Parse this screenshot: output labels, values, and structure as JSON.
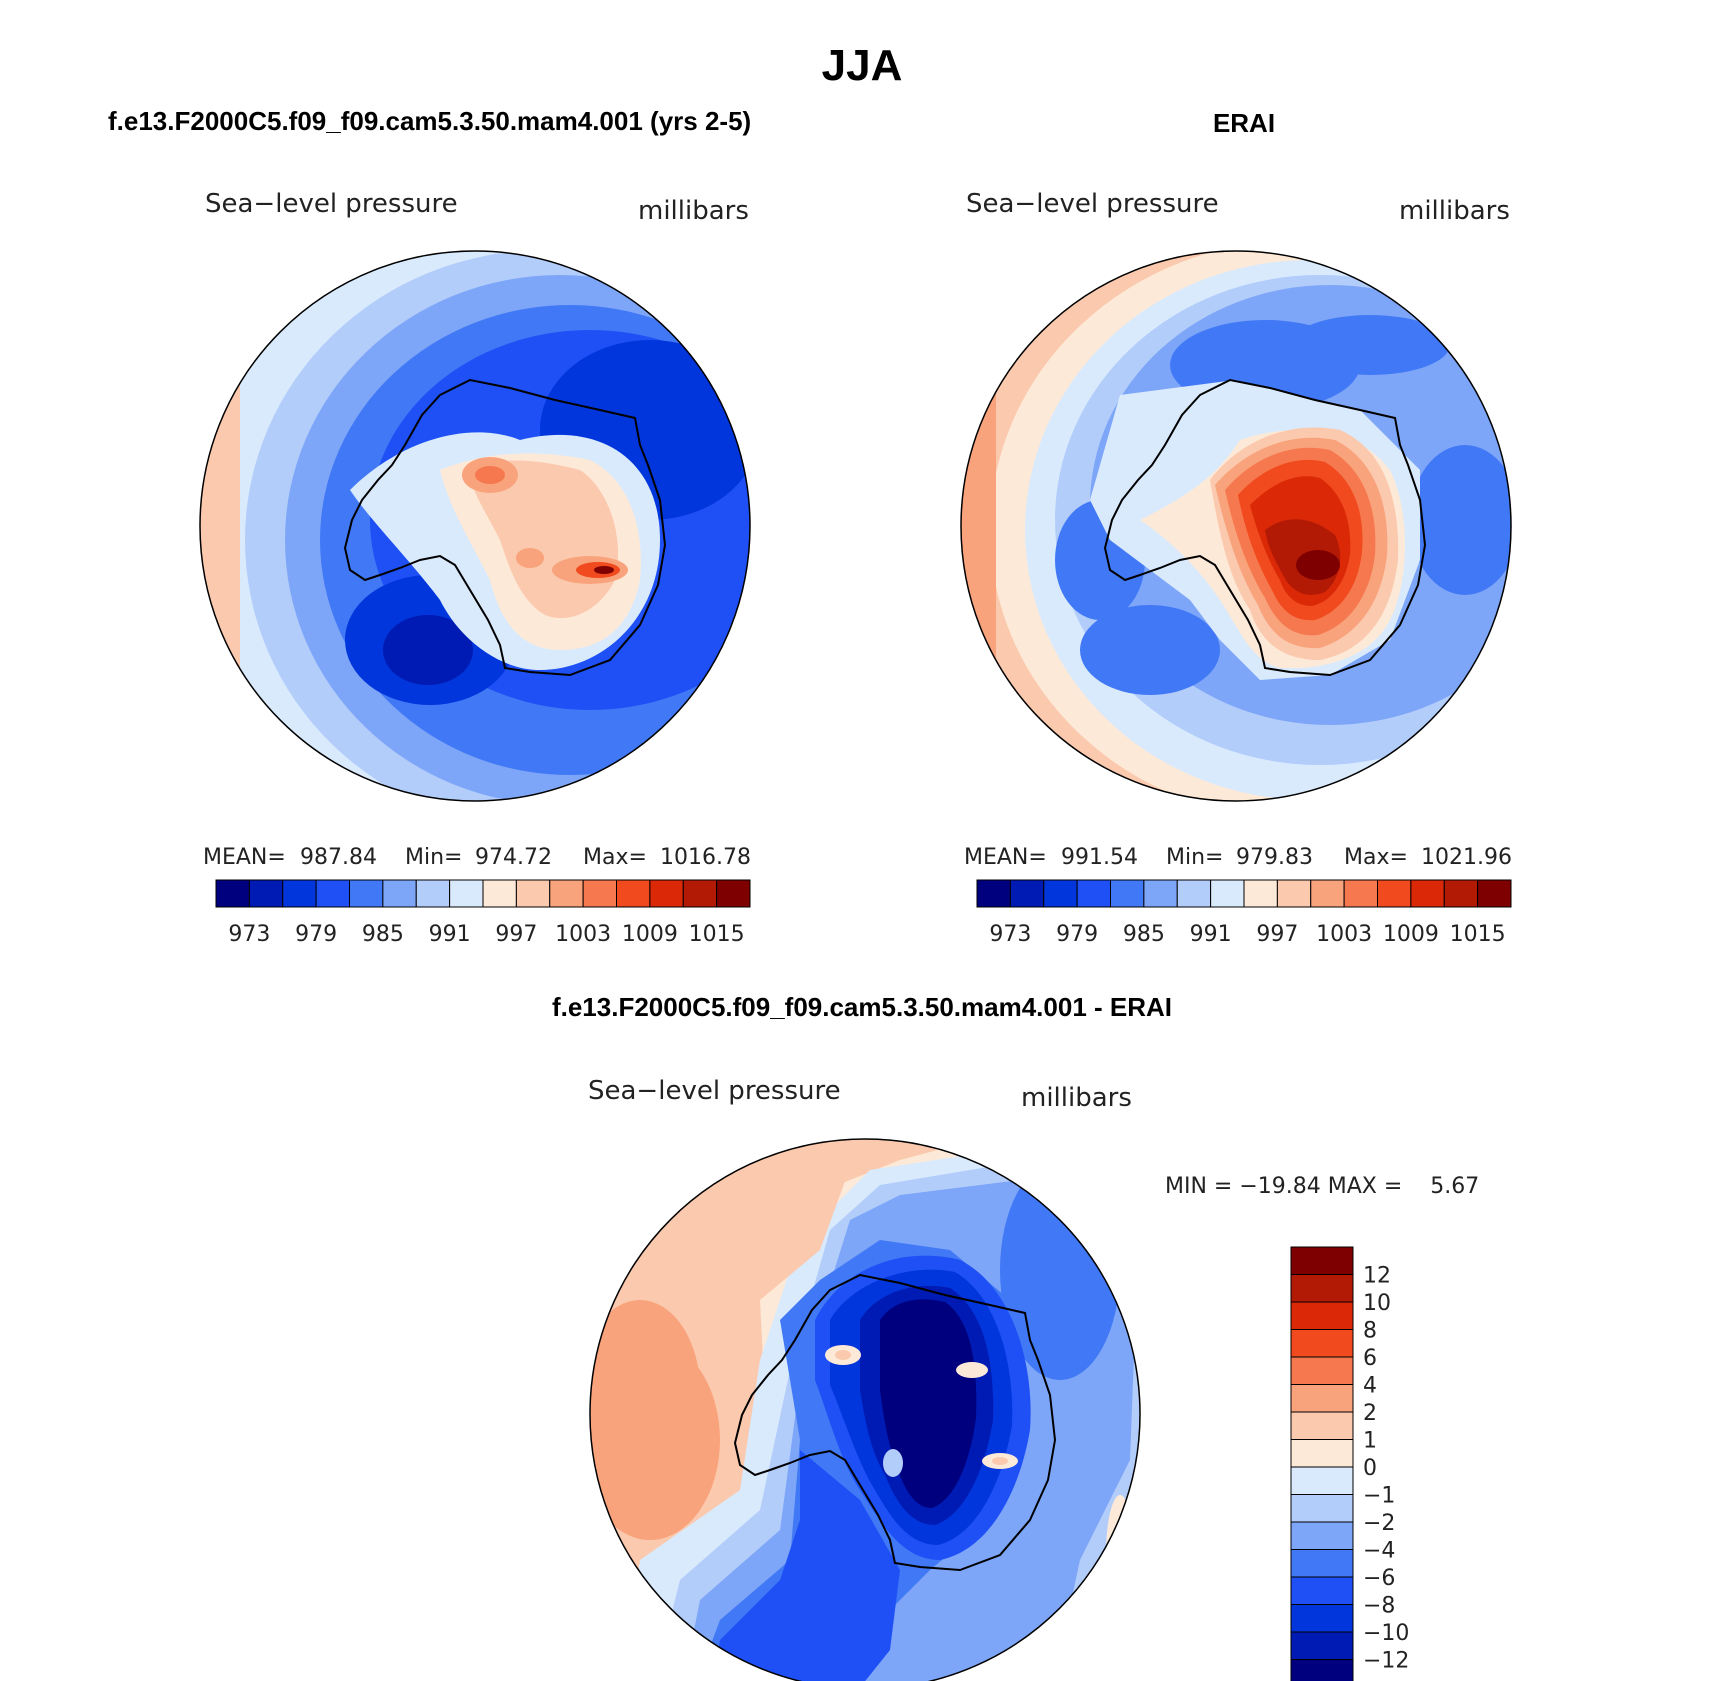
{
  "page_title": "JJA",
  "chart_data": [
    {
      "type": "heatmap",
      "projection": "south-polar-stereographic",
      "title": "f.e13.F2000C5.f09_f09.cam5.3.50.mam4.001 (yrs 2-5)",
      "left_label": "Sea−level pressure",
      "right_label": "millibars",
      "stats": {
        "mean_label": "MEAN=",
        "mean": "987.84",
        "min_label": "Min=",
        "min": "974.72",
        "max_label": "Max=",
        "max": "1016.78"
      },
      "colorbar_orientation": "horizontal",
      "colorbar_ticks": [
        "973",
        "979",
        "985",
        "991",
        "997",
        "1003",
        "1009",
        "1015"
      ],
      "colors": [
        "#00007f",
        "#001bb3",
        "#0036dc",
        "#1e50f5",
        "#4178f5",
        "#7ea6f8",
        "#b3cdfb",
        "#d9eafd",
        "#fde9d7",
        "#fbc9ae",
        "#f9a37c",
        "#f5784f",
        "#f04a1e",
        "#db2908",
        "#b31a06",
        "#7f0000"
      ]
    },
    {
      "type": "heatmap",
      "projection": "south-polar-stereographic",
      "title": "ERAI",
      "left_label": "Sea−level pressure",
      "right_label": "millibars",
      "stats": {
        "mean_label": "MEAN=",
        "mean": "991.54",
        "min_label": "Min=",
        "min": "979.83",
        "max_label": "Max=",
        "max": "1021.96"
      },
      "colorbar_orientation": "horizontal",
      "colorbar_ticks": [
        "973",
        "979",
        "985",
        "991",
        "997",
        "1003",
        "1009",
        "1015"
      ],
      "colors": [
        "#00007f",
        "#001bb3",
        "#0036dc",
        "#1e50f5",
        "#4178f5",
        "#7ea6f8",
        "#b3cdfb",
        "#d9eafd",
        "#fde9d7",
        "#fbc9ae",
        "#f9a37c",
        "#f5784f",
        "#f04a1e",
        "#db2908",
        "#b31a06",
        "#7f0000"
      ]
    },
    {
      "type": "heatmap",
      "projection": "south-polar-stereographic",
      "title": "f.e13.F2000C5.f09_f09.cam5.3.50.mam4.001 - ERAI",
      "left_label": "Sea−level pressure",
      "right_label": "millibars",
      "range_text": "MIN = −19.84 MAX =    5.67",
      "colorbar_orientation": "vertical",
      "colorbar_ticks": [
        "12",
        "10",
        "8",
        "6",
        "4",
        "2",
        "1",
        "0",
        "−1",
        "−2",
        "−4",
        "−6",
        "−8",
        "−10",
        "−12"
      ],
      "colors": [
        "#7f0000",
        "#b31a06",
        "#db2908",
        "#f04a1e",
        "#f5784f",
        "#f9a37c",
        "#fbc9ae",
        "#fde9d7",
        "#d9eafd",
        "#b3cdfb",
        "#7ea6f8",
        "#4178f5",
        "#1e50f5",
        "#0036dc",
        "#001bb3",
        "#00007f"
      ]
    }
  ]
}
